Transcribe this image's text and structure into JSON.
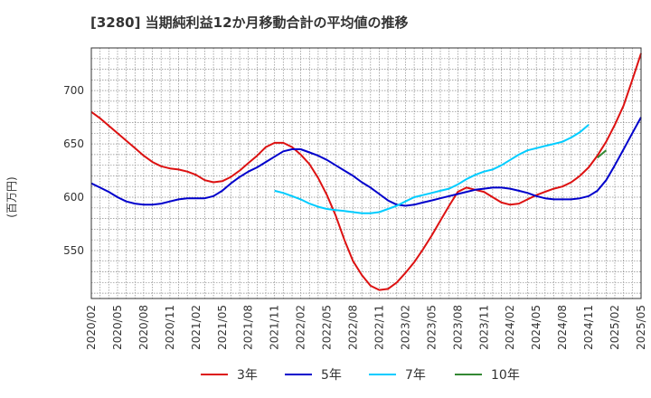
{
  "chart_data": {
    "type": "line",
    "title": "[3280]  当期純利益12か月移動合計の平均値の推移",
    "ylabel": "(百万円)",
    "xlabel": "",
    "ylim": [
      505,
      740
    ],
    "yticks": [
      550,
      600,
      650,
      700
    ],
    "x_tick_labels": [
      "2020/02",
      "2020/05",
      "2020/08",
      "2020/11",
      "2021/02",
      "2021/05",
      "2021/08",
      "2021/11",
      "2022/02",
      "2022/05",
      "2022/08",
      "2022/11",
      "2023/02",
      "2023/05",
      "2023/08",
      "2023/11",
      "2024/02",
      "2024/05",
      "2024/08",
      "2024/11",
      "2025/02",
      "2025/05"
    ],
    "grid": true,
    "legend_position": "bottom",
    "series": [
      {
        "name": "3年",
        "color": "#dd1111",
        "start": "2020/02",
        "values": [
          680,
          674,
          667,
          660,
          653,
          646,
          639,
          633,
          629,
          627,
          626,
          624,
          621,
          616,
          614,
          615,
          619,
          625,
          632,
          639,
          647,
          651,
          651,
          647,
          640,
          631,
          618,
          602,
          583,
          560,
          540,
          527,
          517,
          513,
          514,
          520,
          529,
          539,
          551,
          564,
          578,
          592,
          605,
          609,
          607,
          605,
          600,
          595,
          593,
          594,
          598,
          602,
          605,
          608,
          610,
          614,
          620,
          628,
          639,
          652,
          668,
          686,
          710,
          735
        ]
      },
      {
        "name": "5年",
        "color": "#0000cc",
        "start": "2020/02",
        "values": [
          613,
          609,
          605,
          600,
          596,
          594,
          593,
          593,
          594,
          596,
          598,
          599,
          599,
          599,
          601,
          606,
          613,
          619,
          624,
          628,
          633,
          638,
          643,
          645,
          645,
          642,
          639,
          635,
          630,
          625,
          620,
          614,
          609,
          603,
          597,
          593,
          592,
          593,
          595,
          597,
          599,
          601,
          603,
          605,
          607,
          608,
          609,
          609,
          608,
          606,
          604,
          601,
          599,
          598,
          598,
          598,
          599,
          601,
          606,
          616,
          630,
          645,
          660,
          675
        ]
      },
      {
        "name": "7年",
        "color": "#00ccff",
        "start": "2021/11",
        "values": [
          606,
          604,
          601,
          598,
          594,
          591,
          589,
          588,
          587,
          586,
          585,
          585,
          586,
          589,
          592,
          596,
          600,
          602,
          604,
          606,
          608,
          612,
          617,
          621,
          624,
          626,
          630,
          635,
          640,
          644,
          646,
          648,
          650,
          652,
          656,
          661,
          668
        ]
      },
      {
        "name": "10年",
        "color": "#338833",
        "start": "2024/12",
        "values": [
          637,
          644
        ]
      }
    ]
  }
}
